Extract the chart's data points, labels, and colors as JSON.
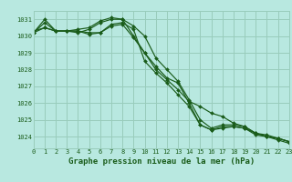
{
  "title": "Graphe pression niveau de la mer (hPa)",
  "background_color": "#b8e8e0",
  "grid_color": "#99ccbb",
  "line_color": "#1a5c1a",
  "xlim": [
    0,
    23
  ],
  "ylim": [
    1023.3,
    1031.5
  ],
  "yticks": [
    1024,
    1025,
    1026,
    1027,
    1028,
    1029,
    1030,
    1031
  ],
  "xticks": [
    0,
    1,
    2,
    3,
    4,
    5,
    6,
    7,
    8,
    9,
    10,
    11,
    12,
    13,
    14,
    15,
    16,
    17,
    18,
    19,
    20,
    21,
    22,
    23
  ],
  "series": [
    [
      1030.2,
      1030.8,
      1030.3,
      1030.3,
      1030.2,
      1030.4,
      1030.8,
      1031.0,
      1031.0,
      1030.0,
      1029.0,
      1028.2,
      1027.5,
      1027.2,
      1026.0,
      1024.7,
      1024.4,
      1024.5,
      1024.6,
      1024.5,
      1024.1,
      1024.0,
      1023.8,
      1023.6
    ],
    [
      1030.3,
      1030.5,
      1030.3,
      1030.3,
      1030.3,
      1030.2,
      1030.2,
      1030.7,
      1030.8,
      1030.4,
      1028.5,
      1027.8,
      1027.2,
      1026.5,
      1025.8,
      1024.7,
      1024.4,
      1024.6,
      1024.6,
      1024.5,
      1024.2,
      1024.0,
      1023.9,
      1023.7
    ],
    [
      1030.2,
      1030.5,
      1030.3,
      1030.3,
      1030.3,
      1030.1,
      1030.2,
      1030.6,
      1030.7,
      1029.9,
      1029.0,
      1028.0,
      1027.4,
      1026.8,
      1026.1,
      1025.8,
      1025.4,
      1025.2,
      1024.8,
      1024.6,
      1024.2,
      1024.0,
      1023.9,
      1023.7
    ],
    [
      1030.2,
      1031.0,
      1030.3,
      1030.3,
      1030.4,
      1030.5,
      1030.9,
      1031.1,
      1031.0,
      1030.6,
      1030.0,
      1028.7,
      1028.0,
      1027.3,
      1026.2,
      1025.0,
      1024.5,
      1024.7,
      1024.7,
      1024.6,
      1024.2,
      1024.1,
      1023.9,
      1023.7
    ]
  ],
  "label_fontsize": 5.0,
  "title_fontsize": 6.5,
  "marker_size": 2.0
}
